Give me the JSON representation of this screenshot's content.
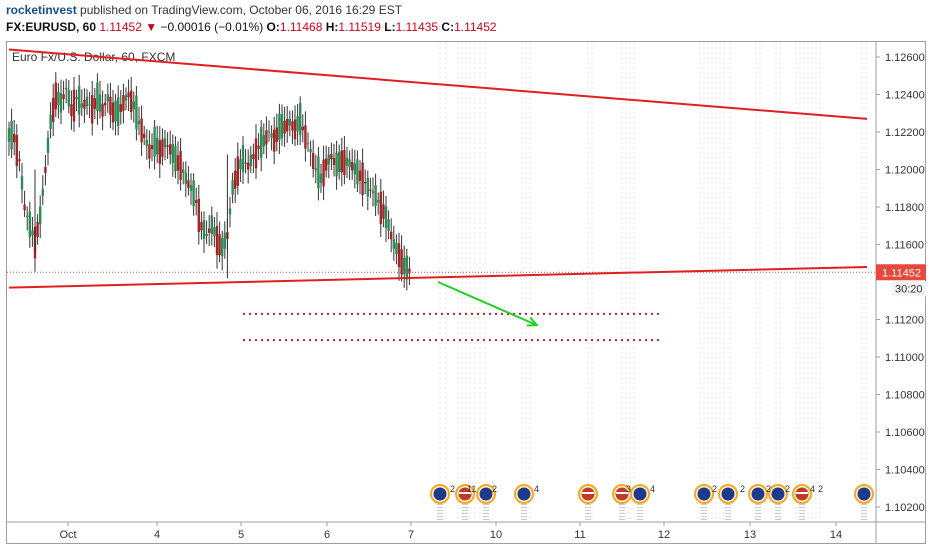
{
  "header": {
    "author": "rocketinvest",
    "published": "published on TradingView.com, October 06, 2016 16:29 EST",
    "symbol": "FX:EURUSD, 60",
    "last": "1.11452",
    "change": "−0.00016 (−0.01%)",
    "o_label": "O:",
    "o_value": "1.11468",
    "h_label": "H:",
    "h_value": "1.11519",
    "l_label": "L:",
    "l_value": "1.11435",
    "c_label": "C:",
    "c_value": "1.11452"
  },
  "chart_data": {
    "type": "candlestick",
    "title": "Euro Fx/U.S. Dollar, 60, FXCM",
    "ylim": [
      1.1012,
      1.1268
    ],
    "y_ticks": [
      "1.12600",
      "1.12400",
      "1.12200",
      "1.12000",
      "1.11800",
      "1.11600",
      "1.11200",
      "1.11000",
      "1.10800",
      "1.10600",
      "1.10400",
      "1.10200"
    ],
    "x_ticks": [
      "Oct",
      "4",
      "5",
      "6",
      "7",
      "10",
      "11",
      "12",
      "13",
      "14"
    ],
    "last_price_label": "1.11452",
    "last_price": 1.11452,
    "countdown_label": "30:20",
    "colors": {
      "up": "#2e8b57",
      "down": "#a32626",
      "trendline": "#e02020",
      "dotted": "#c02020",
      "arrow": "#22d022",
      "price_line": "#d05050",
      "axis_text": "#333333"
    },
    "close_path": [
      [
        0,
        1.1218
      ],
      [
        2,
        1.1217
      ],
      [
        4,
        1.1205
      ],
      [
        6,
        1.118
      ],
      [
        8,
        1.117
      ],
      [
        10,
        1.1162
      ],
      [
        12,
        1.1175
      ],
      [
        14,
        1.12
      ],
      [
        16,
        1.1225
      ],
      [
        18,
        1.124
      ],
      [
        20,
        1.1235
      ],
      [
        22,
        1.1243
      ],
      [
        24,
        1.1232
      ],
      [
        26,
        1.1238
      ],
      [
        28,
        1.1234
      ],
      [
        30,
        1.1236
      ],
      [
        32,
        1.1233
      ],
      [
        34,
        1.1238
      ],
      [
        36,
        1.1232
      ],
      [
        38,
        1.1238
      ],
      [
        40,
        1.1231
      ],
      [
        42,
        1.123
      ],
      [
        44,
        1.1236
      ],
      [
        46,
        1.124
      ],
      [
        48,
        1.1234
      ],
      [
        50,
        1.1225
      ],
      [
        52,
        1.1218
      ],
      [
        54,
        1.121
      ],
      [
        56,
        1.1214
      ],
      [
        58,
        1.121
      ],
      [
        60,
        1.1214
      ],
      [
        62,
        1.1211
      ],
      [
        64,
        1.1205
      ],
      [
        66,
        1.1203
      ],
      [
        68,
        1.1195
      ],
      [
        70,
        1.119
      ],
      [
        72,
        1.1183
      ],
      [
        74,
        1.117
      ],
      [
        76,
        1.1165
      ],
      [
        78,
        1.117
      ],
      [
        80,
        1.1163
      ],
      [
        82,
        1.1158
      ],
      [
        84,
        1.1165
      ],
      [
        86,
        1.119
      ],
      [
        88,
        1.12
      ],
      [
        90,
        1.1205
      ],
      [
        92,
        1.1202
      ],
      [
        94,
        1.1207
      ],
      [
        96,
        1.1212
      ],
      [
        98,
        1.1215
      ],
      [
        100,
        1.122
      ],
      [
        102,
        1.1216
      ],
      [
        104,
        1.1222
      ],
      [
        106,
        1.1223
      ],
      [
        108,
        1.1225
      ],
      [
        110,
        1.1222
      ],
      [
        112,
        1.1226
      ],
      [
        114,
        1.1218
      ],
      [
        116,
        1.121
      ],
      [
        118,
        1.12
      ],
      [
        120,
        1.1195
      ],
      [
        122,
        1.1203
      ],
      [
        124,
        1.1207
      ],
      [
        126,
        1.1202
      ],
      [
        128,
        1.1205
      ],
      [
        130,
        1.1204
      ],
      [
        132,
        1.1202
      ],
      [
        134,
        1.1198
      ],
      [
        136,
        1.1196
      ],
      [
        138,
        1.119
      ],
      [
        140,
        1.1188
      ],
      [
        142,
        1.1183
      ],
      [
        144,
        1.1178
      ],
      [
        146,
        1.117
      ],
      [
        148,
        1.116
      ],
      [
        150,
        1.1155
      ],
      [
        152,
        1.1148
      ],
      [
        154,
        1.1146
      ],
      [
        155,
        1.1145
      ]
    ],
    "extra_wicks": [
      {
        "i": 84,
        "low": 1.1142,
        "high": 1.1208
      },
      {
        "i": 10,
        "low": 1.1156,
        "high": 1.12
      }
    ],
    "trendlines": [
      {
        "from": [
          0,
          1.1264
        ],
        "to": [
          330,
          1.1227
        ]
      },
      {
        "from": [
          0,
          1.1137
        ],
        "to": [
          330,
          1.1148
        ]
      }
    ],
    "dotted_levels": [
      {
        "from": 90,
        "to": 250,
        "y": 1.1123
      },
      {
        "from": 90,
        "to": 250,
        "y": 1.1109
      }
    ],
    "arrow": {
      "from": [
        165,
        1.114
      ],
      "to": [
        203,
        1.1117
      ]
    },
    "event_numbers": [
      "2",
      "11",
      "2",
      "4",
      "3",
      "4",
      "2",
      "2",
      "2",
      "2",
      "4",
      "2"
    ]
  }
}
